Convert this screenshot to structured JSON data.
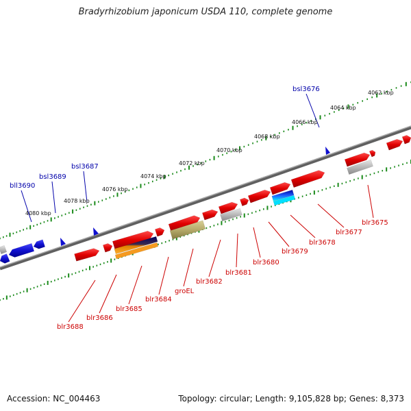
{
  "title": "Bradyrhizobium japonicum USDA 110, complete genome",
  "accession_text": "Accession: NC_004463",
  "summary_text": "Topology: circular; Length: 9,105,828 bp; Genes: 8,373",
  "colors": {
    "forward_gene": "#e00000",
    "reverse_gene": "#1010d0",
    "grey_gene": "#b8b8b8",
    "backbone": "#808080",
    "tick": "#1a8a1a",
    "label_blue": "#0000aa",
    "label_red": "#cc0000"
  },
  "kbp_labels": [
    "4062 kbp",
    "4064 kbp",
    "4066 kbp",
    "4068 kbp",
    "4070 kbp",
    "4072 kbp",
    "4074 kbp",
    "4076 kbp",
    "4078 kbp",
    "4080 kbp"
  ],
  "gene_labels_blue": [
    "bsl3676",
    "bsl3687",
    "bsl3689",
    "bll3690"
  ],
  "gene_labels_red": [
    "blr3675",
    "blr3677",
    "blr3678",
    "blr3679",
    "blr3680",
    "blr3681",
    "blr3682",
    "groEL",
    "blr3684",
    "blr3685",
    "blr3686",
    "blr3688"
  ]
}
